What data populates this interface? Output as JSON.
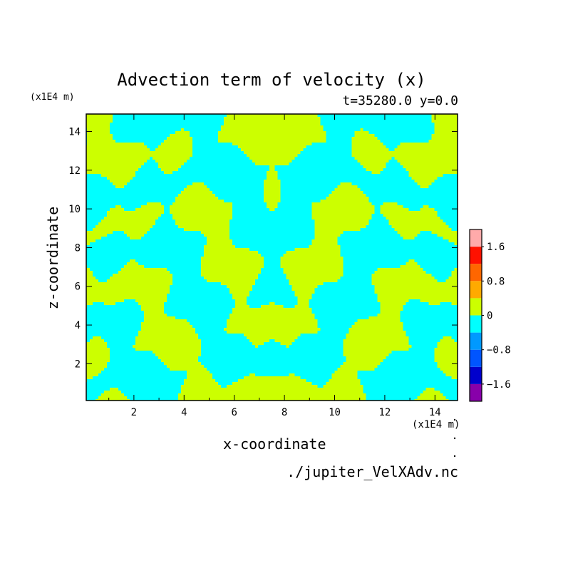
{
  "chart_data": {
    "type": "heatmap",
    "title": "Advection term of velocity (x)",
    "subtitle": "t=35280.0 y=0.0",
    "xlabel": "x-coordinate",
    "ylabel": "z-coordinate",
    "x_unit": "(x1E4 m)",
    "y_unit": "(x1E4 m)",
    "xlim": [
      0.1,
      14.9
    ],
    "ylim": [
      0.1,
      14.9
    ],
    "x_ticks": [
      2,
      4,
      6,
      8,
      10,
      12,
      14
    ],
    "y_ticks": [
      2,
      4,
      6,
      8,
      10,
      12,
      14
    ],
    "field_colors": {
      "negative": "#00ffff",
      "positive": "#ccff00"
    },
    "colorbar": {
      "levels": [
        {
          "range": [
            -2.0,
            -1.6
          ],
          "color": "#8800aa"
        },
        {
          "range": [
            -1.6,
            -1.2
          ],
          "color": "#0000cc"
        },
        {
          "range": [
            -1.2,
            -0.8
          ],
          "color": "#0055ff"
        },
        {
          "range": [
            -0.8,
            -0.4
          ],
          "color": "#0099ff"
        },
        {
          "range": [
            -0.4,
            0.0
          ],
          "color": "#00ffff"
        },
        {
          "range": [
            0.0,
            0.4
          ],
          "color": "#ccff00"
        },
        {
          "range": [
            0.4,
            0.8
          ],
          "color": "#ffaa00"
        },
        {
          "range": [
            0.8,
            1.2
          ],
          "color": "#ff6600"
        },
        {
          "range": [
            1.2,
            1.6
          ],
          "color": "#ff1100"
        },
        {
          "range": [
            1.6,
            2.0
          ],
          "color": "#ffaaaa"
        }
      ],
      "tick_labels": [
        {
          "label": "1.6",
          "value": 1.6
        },
        {
          "label": "0.8",
          "value": 0.8
        },
        {
          "label": "0",
          "value": 0.0
        },
        {
          "label": "−0.8",
          "value": -0.8
        },
        {
          "label": "−1.6",
          "value": -1.6
        }
      ]
    },
    "source_file": "./jupiter_VelXAdv.nc"
  }
}
